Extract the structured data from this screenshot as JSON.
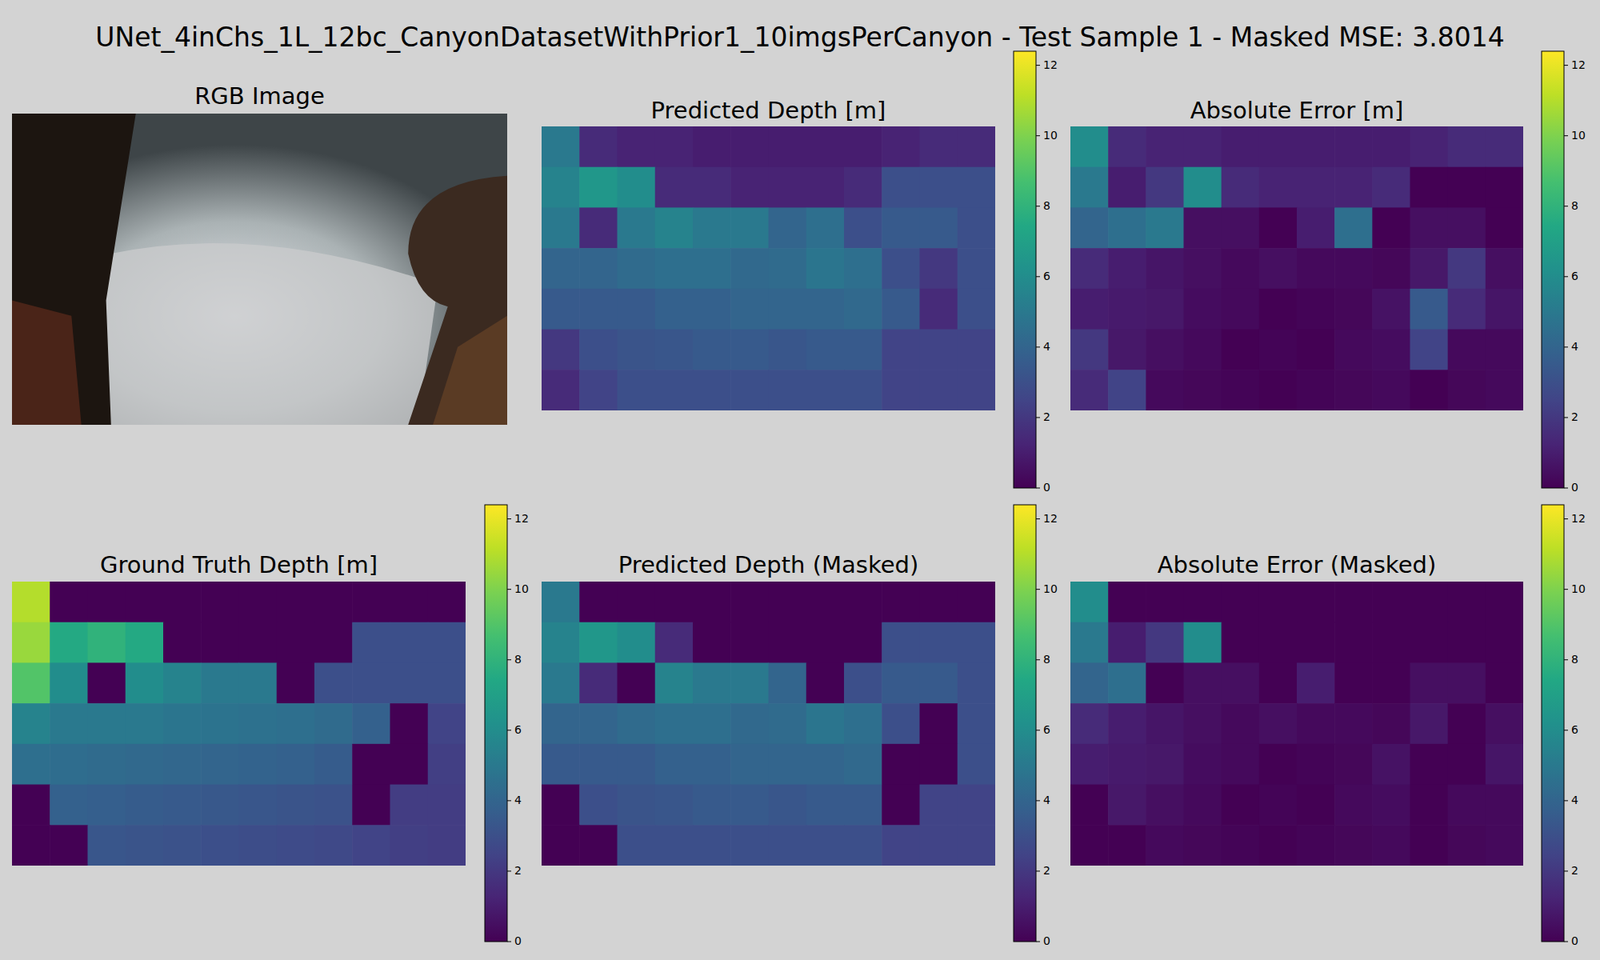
{
  "title": "UNet_4inChs_1L_12bc_CanyonDatasetWithPrior1_10imgsPerCanyon - Test Sample 1 - Masked MSE: 3.8014",
  "chart_data": [
    {
      "type": "image",
      "title": "RGB Image"
    },
    {
      "type": "heatmap",
      "title": "Predicted Depth [m]",
      "values": [
        [
          5,
          1.5,
          1.2,
          1.2,
          1,
          1,
          1,
          1,
          1,
          1.2,
          1.5,
          1.5
        ],
        [
          5.5,
          6.5,
          6,
          1.5,
          1.5,
          1.2,
          1.2,
          1.2,
          1.5,
          3,
          3,
          3
        ],
        [
          5,
          1.5,
          5,
          5.5,
          5,
          5,
          4,
          4.5,
          3,
          3.5,
          3.5,
          3
        ],
        [
          4,
          4,
          4.3,
          4.5,
          4.5,
          4.2,
          4.3,
          4.8,
          4.5,
          3,
          2,
          3
        ],
        [
          3.5,
          3.5,
          3.5,
          3.8,
          3.8,
          4,
          4,
          4,
          4.2,
          3.5,
          1.5,
          3
        ],
        [
          2,
          3,
          3.2,
          3.3,
          3.5,
          3.5,
          3.3,
          3.5,
          3.5,
          2.5,
          2.5,
          2.5
        ],
        [
          1.5,
          2.5,
          3,
          3,
          3,
          3,
          3,
          3,
          3,
          2.5,
          2.5,
          2.5
        ]
      ],
      "colorbar_range": [
        0,
        12.4
      ],
      "colorbar_ticks": [
        0,
        2,
        4,
        6,
        8,
        10,
        12
      ]
    },
    {
      "type": "heatmap",
      "title": "Absolute Error [m]",
      "values": [
        [
          6,
          1.5,
          1.2,
          1.2,
          1,
          1,
          1,
          1,
          1,
          1.2,
          1.5,
          1.5
        ],
        [
          5,
          1,
          2,
          6,
          1.5,
          1.2,
          1.2,
          1.2,
          1.5,
          0,
          0,
          0
        ],
        [
          4,
          4.5,
          5,
          0.5,
          0.5,
          0,
          1,
          4.5,
          0,
          0.5,
          0.5,
          0
        ],
        [
          1.5,
          1,
          0.7,
          0.5,
          0.3,
          0.5,
          0.3,
          0.3,
          0.2,
          0.8,
          2,
          0.5
        ],
        [
          1,
          0.9,
          0.8,
          0.4,
          0.3,
          0,
          0.1,
          0.2,
          0.6,
          3.5,
          1.5,
          0.7
        ],
        [
          2,
          0.8,
          0.5,
          0.3,
          0,
          0.1,
          0,
          0.3,
          0.4,
          2.5,
          0.3,
          0.3
        ],
        [
          1.5,
          2.5,
          0.3,
          0.2,
          0.1,
          0,
          0.1,
          0.2,
          0.3,
          0,
          0.2,
          0.3
        ]
      ],
      "colorbar_range": [
        0,
        12.4
      ],
      "colorbar_ticks": [
        0,
        2,
        4,
        6,
        8,
        10,
        12
      ]
    },
    {
      "type": "heatmap",
      "title": "Ground Truth Depth [m]",
      "values": [
        [
          11,
          0,
          0,
          0,
          0,
          0,
          0,
          0,
          0,
          0,
          0,
          0
        ],
        [
          10.5,
          7.5,
          8,
          7.5,
          0,
          0,
          0,
          0,
          0,
          3,
          3,
          3
        ],
        [
          9,
          6,
          0,
          6,
          5.5,
          5,
          5,
          0,
          3,
          3,
          3,
          3
        ],
        [
          5.5,
          5,
          5,
          5,
          4.8,
          4.7,
          4.6,
          4.5,
          4.3,
          3.8,
          0,
          2.5
        ],
        [
          4.5,
          4.4,
          4.3,
          4.2,
          4.1,
          4,
          3.9,
          3.8,
          3.6,
          0,
          0,
          2.3
        ],
        [
          0,
          3.8,
          3.7,
          3.6,
          3.5,
          3.4,
          3.3,
          3.2,
          3.1,
          0,
          2.2,
          2.2
        ],
        [
          0,
          0,
          3.3,
          3.2,
          3.1,
          3,
          2.9,
          2.8,
          2.7,
          2.5,
          2.3,
          2.2
        ]
      ],
      "colorbar_range": [
        0,
        12.4
      ],
      "colorbar_ticks": [
        0,
        2,
        4,
        6,
        8,
        10,
        12
      ]
    },
    {
      "type": "heatmap",
      "title": "Predicted Depth (Masked)",
      "values": [
        [
          5,
          0,
          0,
          0,
          0,
          0,
          0,
          0,
          0,
          0,
          0,
          0
        ],
        [
          5.5,
          6.5,
          6,
          1.5,
          0,
          0,
          0,
          0,
          0,
          3,
          3,
          3
        ],
        [
          5,
          1.5,
          0,
          5.5,
          5,
          5,
          4,
          0,
          3,
          3.5,
          3.5,
          3
        ],
        [
          4,
          4,
          4.3,
          4.5,
          4.5,
          4.2,
          4.3,
          4.8,
          4.5,
          3,
          0,
          3
        ],
        [
          3.5,
          3.5,
          3.5,
          3.8,
          3.8,
          4,
          4,
          4,
          4.2,
          0,
          0,
          3
        ],
        [
          0,
          3,
          3.2,
          3.3,
          3.5,
          3.5,
          3.3,
          3.5,
          3.5,
          0,
          2.5,
          2.5
        ],
        [
          0,
          0,
          3,
          3,
          3,
          3,
          3,
          3,
          3,
          2.5,
          2.5,
          2.5
        ]
      ],
      "colorbar_range": [
        0,
        12.4
      ],
      "colorbar_ticks": [
        0,
        2,
        4,
        6,
        8,
        10,
        12
      ]
    },
    {
      "type": "heatmap",
      "title": "Absolute Error (Masked)",
      "values": [
        [
          6,
          0,
          0,
          0,
          0,
          0,
          0,
          0,
          0,
          0,
          0,
          0
        ],
        [
          5,
          1,
          2,
          6,
          0,
          0,
          0,
          0,
          0,
          0,
          0,
          0
        ],
        [
          4,
          4.5,
          0,
          0.5,
          0.5,
          0,
          1,
          0,
          0,
          0.5,
          0.5,
          0
        ],
        [
          1.5,
          1,
          0.7,
          0.5,
          0.3,
          0.5,
          0.3,
          0.3,
          0.2,
          0.8,
          0,
          0.5
        ],
        [
          1,
          0.9,
          0.8,
          0.4,
          0.3,
          0,
          0.1,
          0.2,
          0.6,
          0,
          0,
          0.7
        ],
        [
          0,
          0.8,
          0.5,
          0.3,
          0,
          0.1,
          0,
          0.3,
          0.4,
          0,
          0.3,
          0.3
        ],
        [
          0,
          0,
          0.3,
          0.2,
          0.1,
          0,
          0.1,
          0.2,
          0.3,
          0,
          0.2,
          0.3
        ]
      ],
      "colorbar_range": [
        0,
        12.4
      ],
      "colorbar_ticks": [
        0,
        2,
        4,
        6,
        8,
        10,
        12
      ]
    }
  ]
}
